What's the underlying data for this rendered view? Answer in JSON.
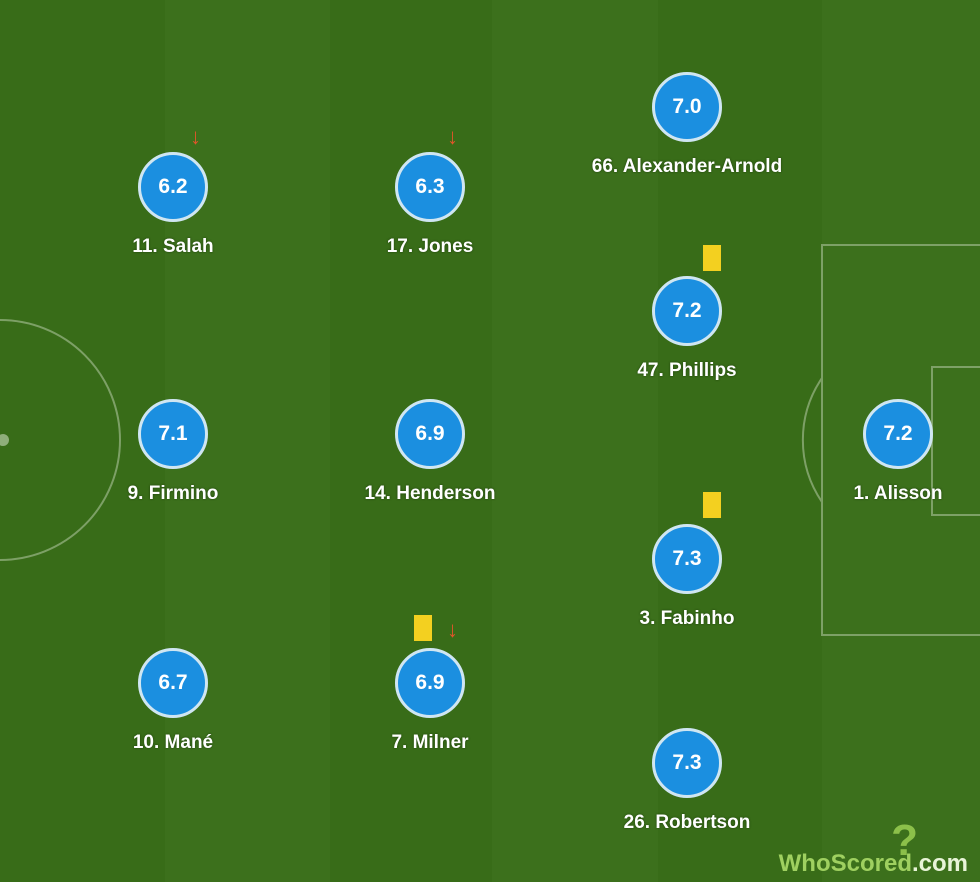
{
  "players": [
    {
      "number": "11",
      "name": "11.  Salah",
      "rating": "6.2",
      "subbed_off": true
    },
    {
      "number": "17",
      "name": "17. Jones",
      "rating": "6.3",
      "subbed_off": true
    },
    {
      "number": "66",
      "name": "66. Alexander-Arnold",
      "rating": "7.0"
    },
    {
      "number": "47",
      "name": "47. Phillips",
      "rating": "7.2",
      "yellow_card": true
    },
    {
      "number": "9",
      "name": "9. Firmino",
      "rating": "7.1"
    },
    {
      "number": "14",
      "name": "14. Henderson",
      "rating": "6.9"
    },
    {
      "number": "1",
      "name": "1. Alisson",
      "rating": "7.2"
    },
    {
      "number": "3",
      "name": "3. Fabinho",
      "rating": "7.3",
      "yellow_card": true
    },
    {
      "number": "10",
      "name": "10. Mané",
      "rating": "6.7"
    },
    {
      "number": "7",
      "name": "7. Milner",
      "rating": "6.9",
      "yellow_card": true,
      "subbed_off": true
    },
    {
      "number": "26",
      "name": "26. Robertson",
      "rating": "7.3"
    }
  ],
  "icons": {
    "sub_off": "↓",
    "card_color": "#f3d020",
    "rating_color": "#1b8fe0"
  },
  "logo": {
    "text": "WhoScored",
    "suffix": ".com"
  }
}
